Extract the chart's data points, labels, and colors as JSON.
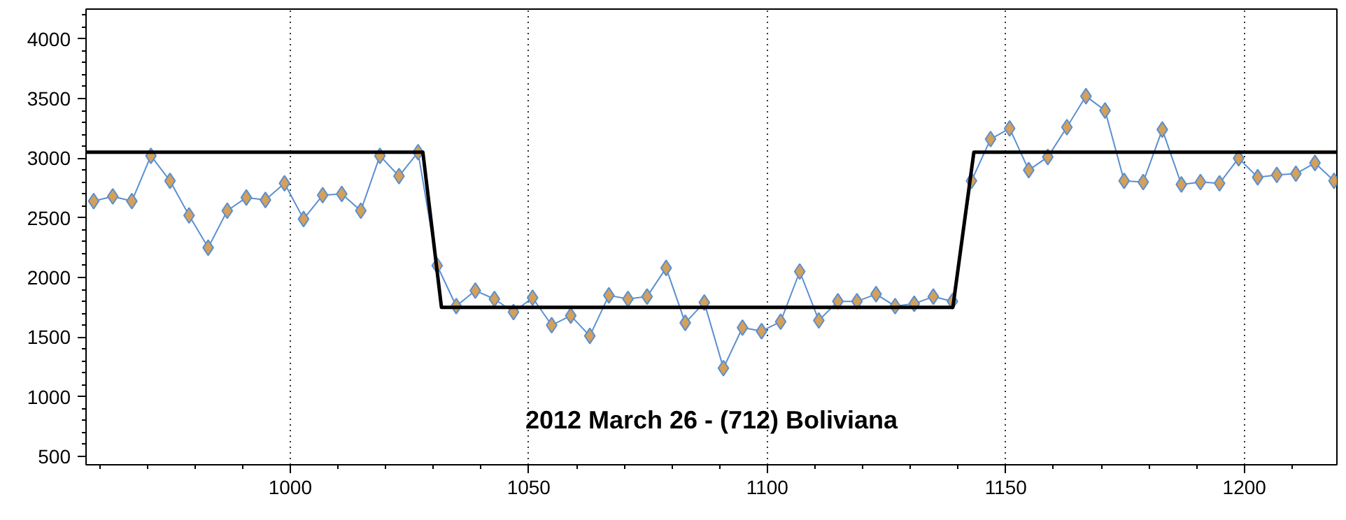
{
  "chart_data": {
    "type": "line",
    "title": "2012 March 26 - (712) Boliviana",
    "xlim": [
      957.2,
      1219.4
    ],
    "ylim": [
      430,
      4250
    ],
    "xticks": [
      1000,
      1050,
      1100,
      1150,
      1200
    ],
    "yticks": [
      500,
      1000,
      1500,
      2000,
      2500,
      3000,
      3500,
      4000
    ],
    "grid": "x",
    "line_style": "solid",
    "series": [
      {
        "color": "#5b8fd0",
        "marker": "diamond",
        "colors": [
          "#d4a05a",
          "#d4a05a",
          "#d4a05a",
          "#d4a05a",
          "#d4a05a",
          "#d4a05a",
          "#d4a05a",
          "#d4a05a",
          "#d4a05a",
          "#d4a05a",
          "#d4a05a",
          "#d4a05a",
          "#d4a05a",
          "#d4a05a",
          "#d4a05a",
          "#d4a05a",
          "#d4a05a",
          "#d4a05a",
          "#d4a05a",
          "#d4a05a",
          "#d4a05a",
          "#d4a05a",
          "#d4a05a",
          "#d4a05a",
          "#d4a05a",
          "#d4a05a",
          "#d4a05a",
          "#d4a05a",
          "#d4a05a",
          "#d4a05a",
          "#d4a05a",
          "#d4a05a",
          "#d4a05a",
          "#d4a05a",
          "#d4a05a",
          "#d4a05a",
          "#d4a05a",
          "#d4a05a",
          "#d4a05a",
          "#d4a05a",
          "#d4a05a",
          "#d4a05a",
          "#d4a05a",
          "#d4a05a",
          "#d4a05a",
          "#d4a05a",
          "#d4a05a",
          "#d4a05a",
          "#d4a05a",
          "#d4a05a",
          "#d4a05a",
          "#d4a05a",
          "#d4a05a",
          "#d4a05a",
          "#d4a05a",
          "#d4a05a",
          "#d4a05a",
          "#d4a05a",
          "#d4a05a",
          "#d4a05a",
          "#d4a05a",
          "#d4a05a",
          "#d4a05a",
          "#d4a05a",
          "#d4a05a",
          "#d4a05a"
        ],
        "x": [
          958.8,
          962.8,
          966.8,
          970.8,
          974.8,
          978.8,
          982.8,
          986.8,
          990.8,
          994.8,
          998.8,
          1002.8,
          1006.8,
          1010.8,
          1014.8,
          1018.8,
          1022.8,
          1026.8,
          1030.8,
          1034.8,
          1038.8,
          1042.8,
          1046.8,
          1050.8,
          1054.8,
          1058.8,
          1062.8,
          1066.8,
          1070.8,
          1074.8,
          1078.8,
          1082.8,
          1086.8,
          1090.8,
          1094.8,
          1098.8,
          1102.8,
          1106.8,
          1110.8,
          1114.8,
          1118.8,
          1122.8,
          1126.8,
          1130.8,
          1134.8,
          1138.8,
          1142.8,
          1146.8,
          1150.8,
          1154.8,
          1158.8,
          1162.8,
          1166.8,
          1170.8,
          1174.8,
          1178.8,
          1182.8,
          1186.8,
          1190.8,
          1194.8,
          1198.8,
          1202.8,
          1206.8,
          1210.8,
          1214.8,
          1218.8
        ],
        "values": [
          2640,
          2680,
          2640,
          3020,
          2810,
          2520,
          2250,
          2560,
          2670,
          2650,
          2790,
          2490,
          2690,
          2700,
          2560,
          3020,
          2850,
          3050,
          2100,
          1760,
          1890,
          1820,
          1710,
          1830,
          1600,
          1680,
          1510,
          1850,
          1820,
          1840,
          2080,
          1620,
          1790,
          1240,
          1580,
          1550,
          1630,
          2050,
          1640,
          1800,
          1800,
          1860,
          1760,
          1780,
          1840,
          1800,
          2810,
          3160,
          3250,
          2900,
          3010,
          3260,
          3520,
          3400,
          2810,
          2800,
          3240,
          2780,
          2800,
          2790,
          3000,
          2840,
          2860,
          2870,
          2960,
          2810
        ]
      },
      {
        "type": "line",
        "color": "#000000",
        "marker": "none",
        "x": [
          957.2,
          1027.8,
          1031.7,
          1138.9,
          1143.3,
          1219.4
        ],
        "values": [
          3050,
          3050,
          1750,
          1750,
          3050,
          3050
        ]
      }
    ]
  }
}
